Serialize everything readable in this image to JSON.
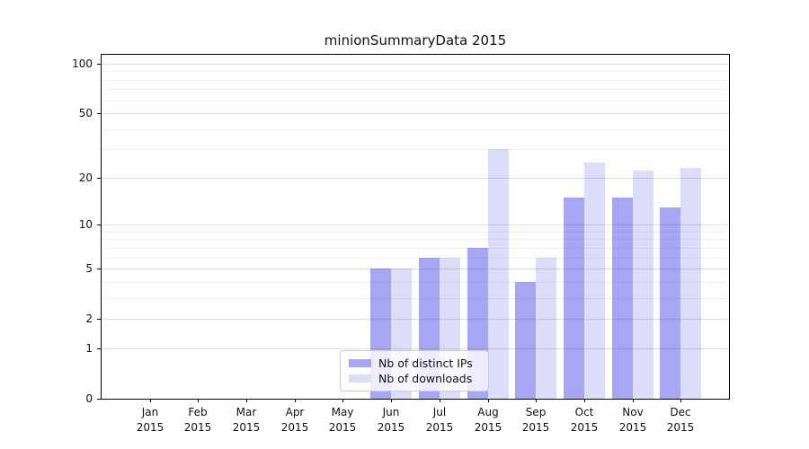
{
  "chart_data": {
    "type": "bar",
    "title": "minionSummaryData 2015",
    "categories": [
      {
        "month": "Jan",
        "year": "2015"
      },
      {
        "month": "Feb",
        "year": "2015"
      },
      {
        "month": "Mar",
        "year": "2015"
      },
      {
        "month": "Apr",
        "year": "2015"
      },
      {
        "month": "May",
        "year": "2015"
      },
      {
        "month": "Jun",
        "year": "2015"
      },
      {
        "month": "Jul",
        "year": "2015"
      },
      {
        "month": "Aug",
        "year": "2015"
      },
      {
        "month": "Sep",
        "year": "2015"
      },
      {
        "month": "Oct",
        "year": "2015"
      },
      {
        "month": "Nov",
        "year": "2015"
      },
      {
        "month": "Dec",
        "year": "2015"
      }
    ],
    "series": [
      {
        "name": "Nb of distinct IPs",
        "color": "#a5a7f5",
        "values": [
          0,
          0,
          0,
          0,
          0,
          5,
          6,
          7,
          4,
          15,
          15,
          13
        ]
      },
      {
        "name": "Nb of downloads",
        "color": "#dbddf9",
        "values": [
          0,
          0,
          0,
          0,
          0,
          5,
          6,
          30,
          6,
          25,
          22,
          23
        ]
      }
    ],
    "xlabel": "",
    "ylabel": "",
    "y_scale": "log10(1+x)",
    "ylim": [
      0,
      113
    ],
    "y_major_ticks": [
      0,
      1,
      2,
      5,
      10,
      20,
      50,
      100
    ],
    "y_minor_gridlines": [
      3,
      4,
      6,
      7,
      8,
      9,
      30,
      40,
      60,
      70,
      80,
      90
    ],
    "grid": "on",
    "legend_position": "lower-center-inside"
  }
}
